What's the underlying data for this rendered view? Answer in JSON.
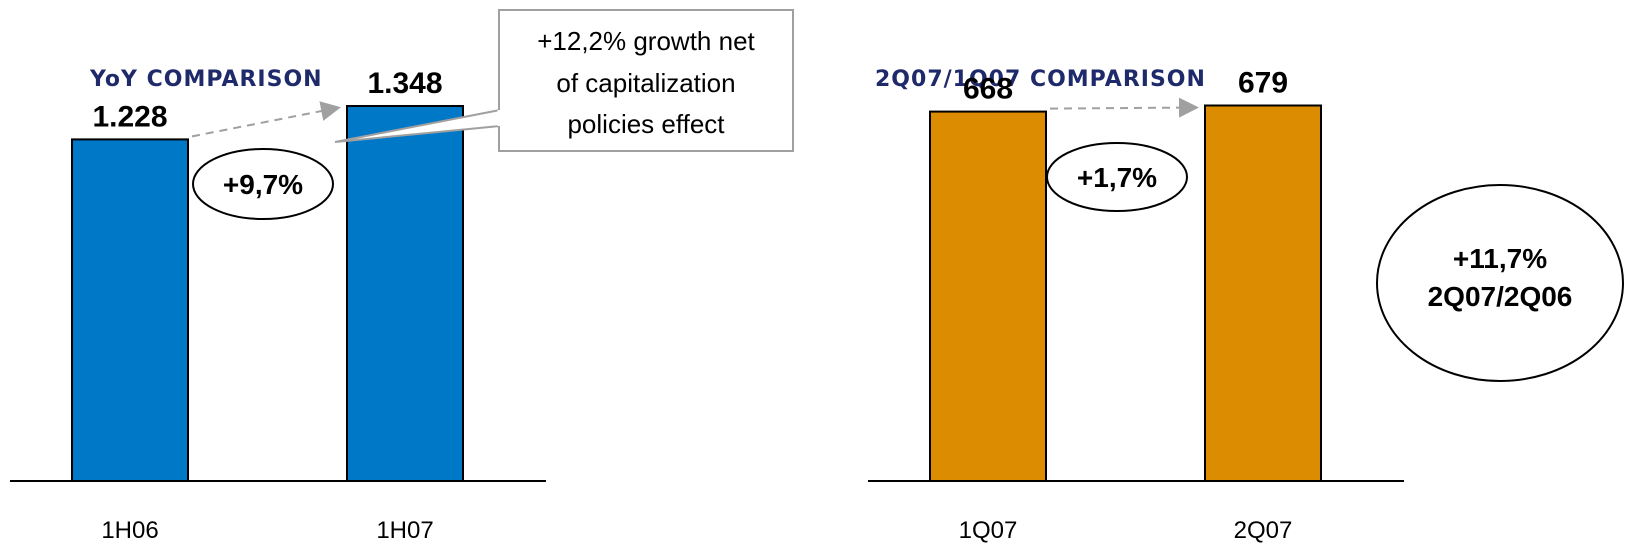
{
  "colors": {
    "title": "#1f2a6b",
    "bar_yoy": "#0078c8",
    "bar_qoq": "#dc8c00",
    "arrow": "#a0a0a0",
    "callout_border": "#a0a0a0"
  },
  "chart_data": [
    {
      "type": "bar",
      "title": "YoY COMPARISON",
      "categories": [
        "1H06",
        "1H07"
      ],
      "values": [
        1228,
        1348
      ],
      "value_labels": [
        "1.228",
        "1.348"
      ],
      "growth_label": "+9,7%",
      "callout": [
        "+12,2% growth net",
        "of capitalization",
        "policies effect"
      ],
      "ylim": [
        0,
        1650
      ]
    },
    {
      "type": "bar",
      "title": "2Q07/1Q07 COMPARISON",
      "categories": [
        "1Q07",
        "2Q07"
      ],
      "values": [
        668,
        679
      ],
      "value_labels": [
        "668",
        "679"
      ],
      "growth_label": "+1,7%",
      "side_note": [
        "+11,7%",
        "2Q07/2Q06"
      ],
      "ylim": [
        0,
        830
      ]
    }
  ]
}
